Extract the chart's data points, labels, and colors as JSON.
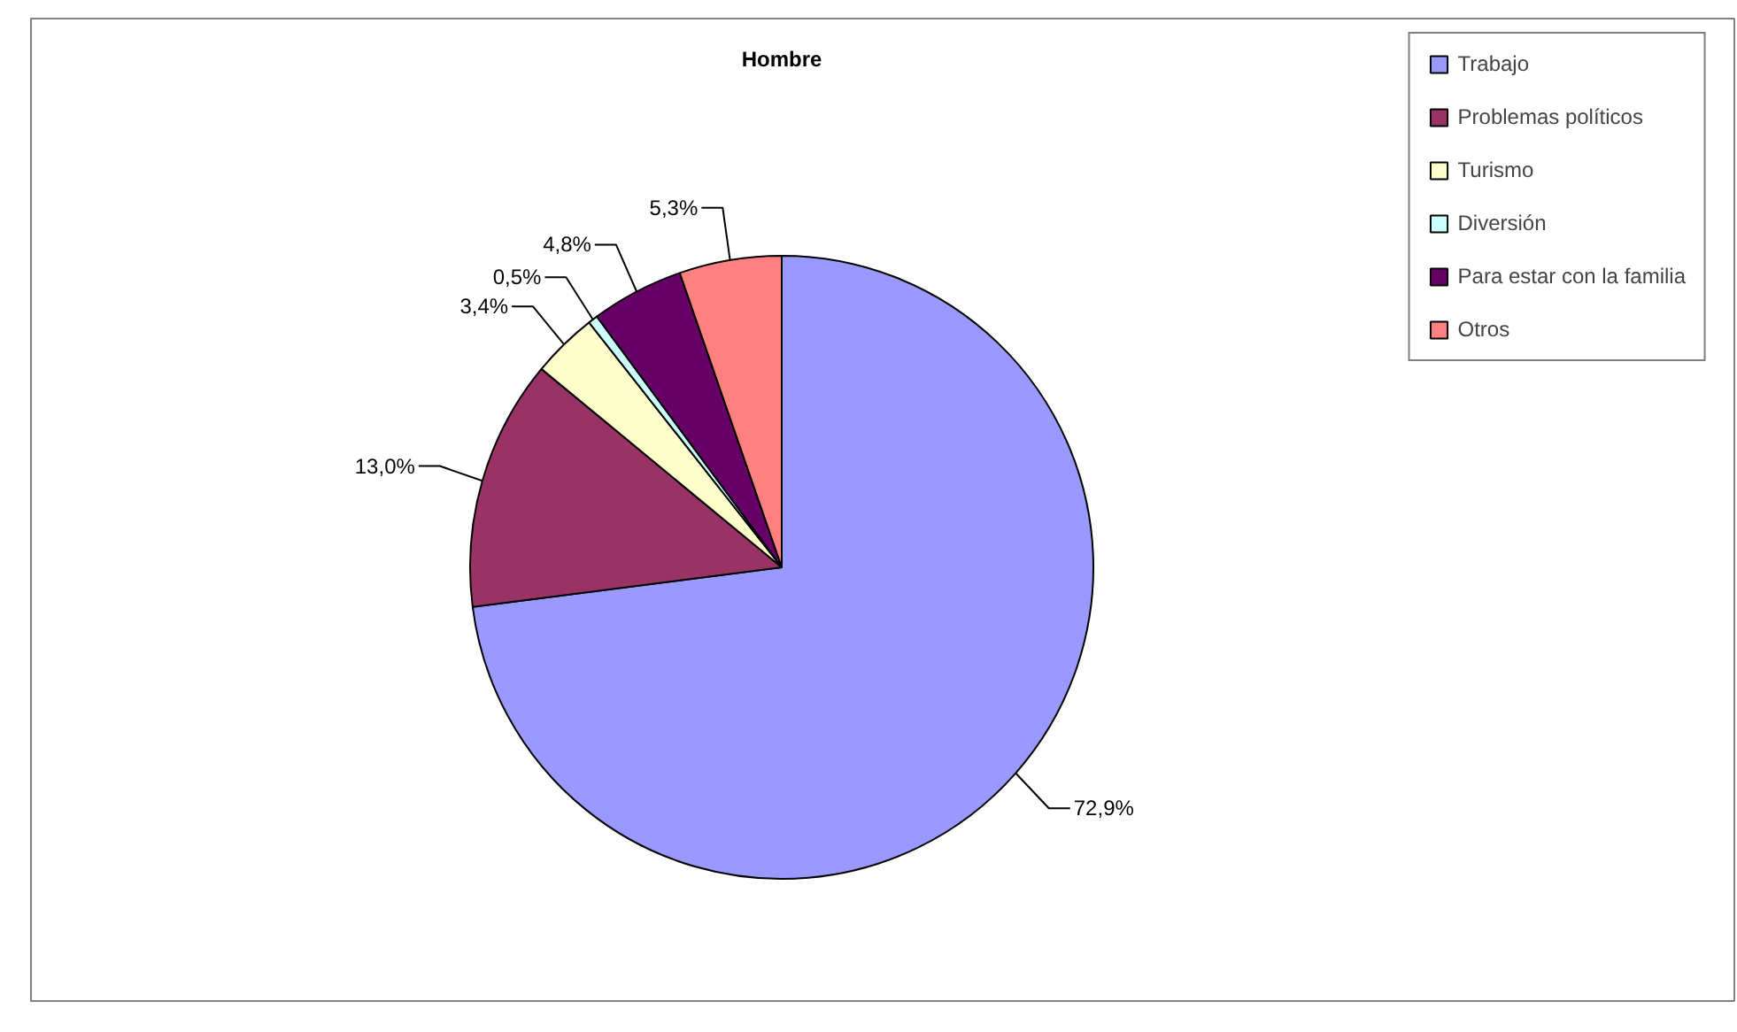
{
  "chart_data": {
    "type": "pie",
    "title": "Hombre",
    "categories": [
      "Trabajo",
      "Problemas políticos",
      "Turismo",
      "Diversión",
      "Para estar con la familia",
      "Otros"
    ],
    "values": [
      72.9,
      13.0,
      3.4,
      0.5,
      4.8,
      5.3
    ],
    "colors": [
      "#9999ff",
      "#993366",
      "#ffffcc",
      "#ccffff",
      "#660066",
      "#ff8080"
    ],
    "value_labels": [
      "72,9%",
      "13,0%",
      "3,4%",
      "0,5%",
      "4,8%",
      "5,3%"
    ],
    "legend": "top right"
  }
}
